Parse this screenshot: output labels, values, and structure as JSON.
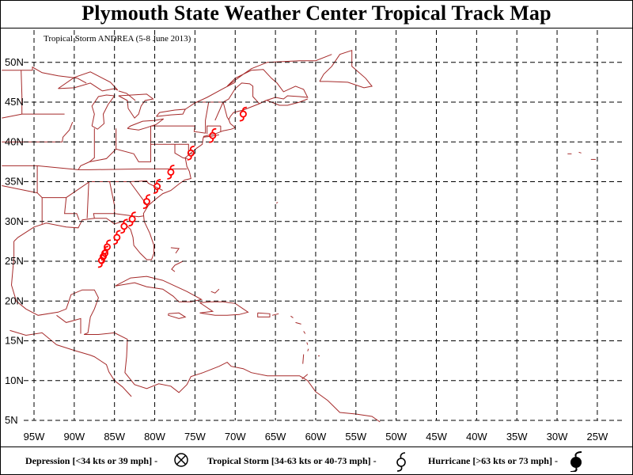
{
  "title": "Plymouth State Weather Center Tropical Track Map",
  "storm_label": "Tropical Storm ANDREA (5-8 June 2013)",
  "legend": {
    "depression": "Depression [<34 kts or 39 mph] -",
    "tropical_storm": "Tropical Storm [34-63 kts or 40-73 mph] -",
    "hurricane": "Hurricane [>63 kts or 73 mph] -"
  },
  "colors": {
    "track": "#ff0000",
    "coast": "#a52a2a",
    "grid": "#000000"
  },
  "chart_data": {
    "type": "scatter",
    "xlim": [
      -99,
      -22
    ],
    "ylim": [
      4.5,
      55
    ],
    "lat_ticks": [
      5,
      10,
      15,
      20,
      25,
      30,
      35,
      40,
      45,
      50
    ],
    "lat_labels": [
      "5N",
      "10N",
      "15N",
      "20N",
      "25N",
      "30N",
      "35N",
      "40N",
      "45N",
      "50N"
    ],
    "lon_ticks": [
      -95,
      -90,
      -85,
      -80,
      -75,
      -70,
      -65,
      -60,
      -55,
      -50,
      -45,
      -40,
      -35,
      -30,
      -25
    ],
    "lon_labels": [
      "95W",
      "90W",
      "85W",
      "80W",
      "75W",
      "70W",
      "65W",
      "60W",
      "55W",
      "50W",
      "45W",
      "40W",
      "35W",
      "30W",
      "25W"
    ],
    "grid": true,
    "track": [
      {
        "lon": -86.6,
        "lat": 25.1,
        "category": "tropical_storm"
      },
      {
        "lon": -86.4,
        "lat": 25.6,
        "category": "tropical_storm"
      },
      {
        "lon": -86.2,
        "lat": 26.0,
        "category": "tropical_storm"
      },
      {
        "lon": -85.9,
        "lat": 26.8,
        "category": "tropical_storm"
      },
      {
        "lon": -84.7,
        "lat": 28.0,
        "category": "tropical_storm"
      },
      {
        "lon": -83.8,
        "lat": 29.4,
        "category": "tropical_storm"
      },
      {
        "lon": -82.8,
        "lat": 30.3,
        "category": "tropical_storm"
      },
      {
        "lon": -81.0,
        "lat": 32.5,
        "category": "tropical_storm"
      },
      {
        "lon": -79.7,
        "lat": 34.4,
        "category": "tropical_storm"
      },
      {
        "lon": -78.0,
        "lat": 36.2,
        "category": "tropical_storm"
      },
      {
        "lon": -75.5,
        "lat": 38.6,
        "category": "tropical_storm"
      },
      {
        "lon": -72.8,
        "lat": 40.8,
        "category": "tropical_storm"
      },
      {
        "lon": -69.0,
        "lat": 43.5,
        "category": "tropical_storm"
      }
    ]
  }
}
